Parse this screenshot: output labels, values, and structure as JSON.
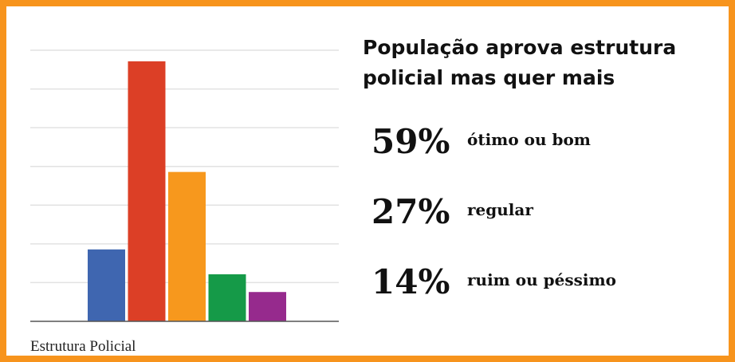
{
  "chart_data": {
    "type": "bar",
    "categories": [
      "Estrutura Policial"
    ],
    "series": [
      {
        "color": "#3f66b0",
        "values": [
          13
        ]
      },
      {
        "color": "#dc3f26",
        "values": [
          47
        ]
      },
      {
        "color": "#f7981d",
        "values": [
          27
        ]
      },
      {
        "color": "#159a48",
        "values": [
          8.5
        ]
      },
      {
        "color": "#962a8d",
        "values": [
          5.3
        ]
      }
    ],
    "ylim": [
      0,
      49
    ],
    "gridlines": [
      7,
      14,
      21,
      28,
      35,
      42,
      49
    ],
    "grid": true
  },
  "panel": {
    "title_lines": [
      "População aprova estrutura",
      "policial mas quer mais"
    ],
    "values": [
      59,
      27,
      14
    ],
    "value_labels": [
      "59%",
      "27%",
      "14%"
    ],
    "labels": [
      "ótimo ou bom",
      "regular",
      "ruim ou péssimo"
    ]
  }
}
